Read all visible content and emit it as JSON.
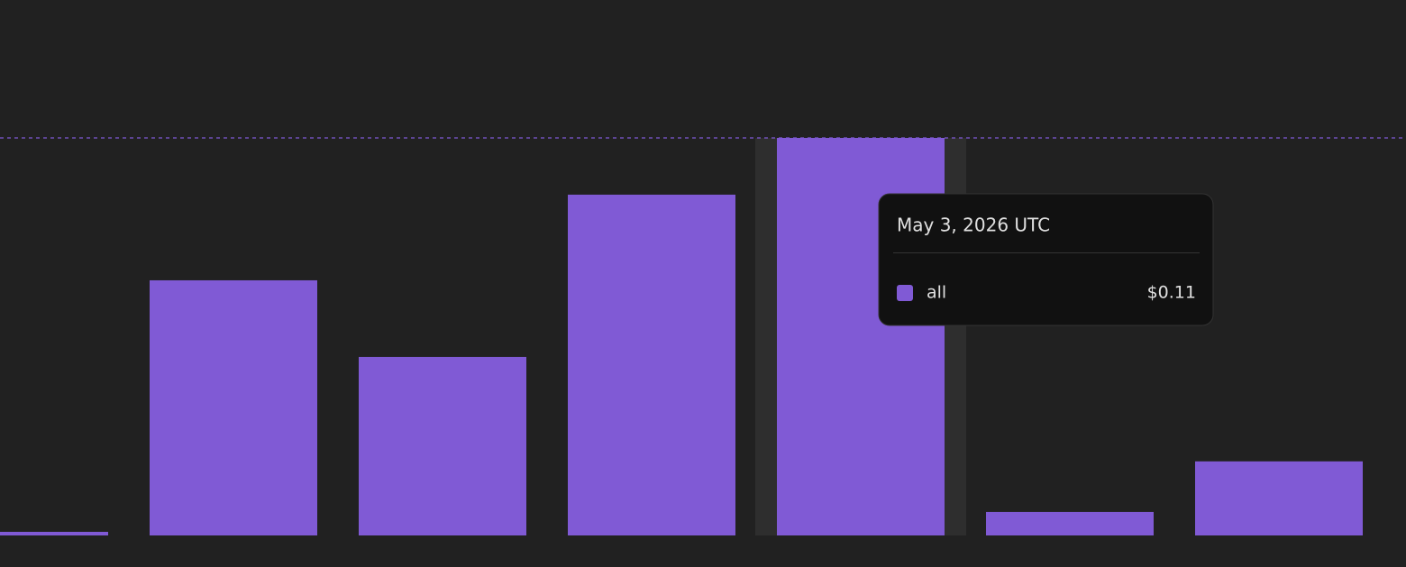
{
  "chart_data": {
    "type": "bar",
    "categories": [
      null,
      null,
      null,
      null,
      "May 3, 2026 UTC",
      null,
      null
    ],
    "series": [
      {
        "name": "all",
        "color": "#805ad5",
        "values": [
          0.001,
          0.0706,
          0.0494,
          0.0943,
          0.11,
          0.0065,
          0.0205
        ],
        "value_labels": [
          null,
          null,
          null,
          null,
          "$0.11",
          null,
          null
        ]
      }
    ],
    "ylim": [
      0,
      0.11
    ],
    "hovered": 4
  }
}
